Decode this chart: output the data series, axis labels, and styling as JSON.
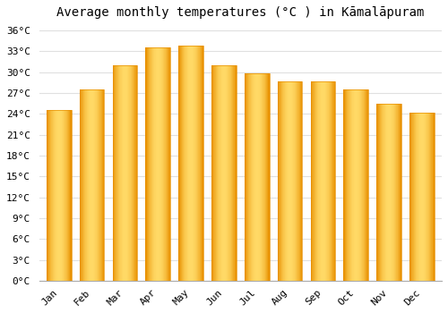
{
  "months": [
    "Jan",
    "Feb",
    "Mar",
    "Apr",
    "May",
    "Jun",
    "Jul",
    "Aug",
    "Sep",
    "Oct",
    "Nov",
    "Dec"
  ],
  "values": [
    24.5,
    27.5,
    31.0,
    33.5,
    33.8,
    31.0,
    29.8,
    28.7,
    28.7,
    27.5,
    25.5,
    24.2
  ],
  "bar_color_light": "#FFD966",
  "bar_color_dark": "#E89000",
  "bar_color_mid": "#FFC200",
  "title": "Average monthly temperatures (°C ) in Kāmalāpuram",
  "ylim": [
    0,
    37
  ],
  "yticks": [
    0,
    3,
    6,
    9,
    12,
    15,
    18,
    21,
    24,
    27,
    30,
    33,
    36
  ],
  "background_color": "#ffffff",
  "plot_bg_color": "#f8f8f8",
  "grid_color": "#e0e0e0",
  "title_fontsize": 10,
  "tick_fontsize": 8,
  "bar_width": 0.75
}
